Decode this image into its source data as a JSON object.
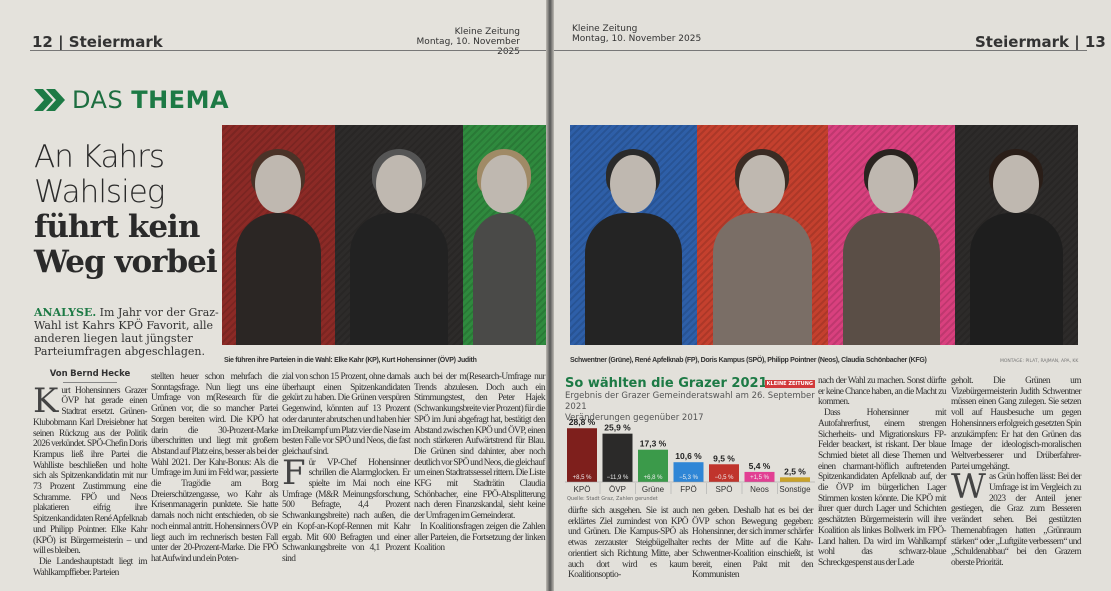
{
  "left_page": {
    "section": "12 | Steiermark",
    "paper": "Kleine Zeitung",
    "date": "Montag, 10. November 2025",
    "kicker": {
      "light": "DAS",
      "bold": "THEMA"
    },
    "headline": {
      "light_1": "An Kahrs",
      "light_2": "Wahlsieg",
      "bold_1": "führt kein",
      "bold_2": "Weg vorbei"
    },
    "lead": {
      "label": "ANALYSE.",
      "text": " Im Jahr vor der Graz-Wahl ist Kahrs KPÖ Favorit, alle anderen liegen laut jüngster Parteiumfragen abgeschlagen."
    },
    "caption": "Sie führen ihre Parteien in die Wahl: Elke Kahr (KP), Kurt Hohensinner (ÖVP) Judith",
    "byline": "Von Bernd Hecke",
    "col1": {
      "drop": "K",
      "p1": "urt Hohensinners Grazer ÖVP hat gerade einen Stadtrat ersetzt. Grünen-Klubobmann Karl Dreisiebner hat seinen Rückzug aus der Politik 2026 verkündet. SPÖ-Chefin Doris Krampus ließ ihre Partei die Wahlliste beschließen und holte sich als Spitzenkandidatin mit nur 73 Prozent Zustimmung eine Schramme. FPÖ und Neos plakatieren eifrig ihre Spitzenkandidaten René Apfelknab und Philipp Pointner. Elke Kahr (KPÖ) ist Bürgermeisterin – und will es bleiben.",
      "p2": "Die Landeshauptstadt liegt im Wahlkampffieber. Parteien"
    },
    "col2": "stellten heuer schon mehrfach die Sonntagsfrage. Nun liegt uns eine Umfrage von m(Research für die Grünen vor, die so mancher Partei Sorgen bereiten wird. Die KPÖ hat darin die 30-Prozent-Marke überschritten und liegt mit großem Abstand auf Platz eins, besser als bei der Wahl 2021. Der Kahr-Bonus: Als die Umfrage im Juni im Feld war, passierte die Tragödie am Borg Dreierschützengasse, wo Kahr als Krisenmanagerin punktete. Sie hatte damals noch nicht entschieden, ob sie noch einmal antritt. Hohensinners ÖVP liegt auch im rechnerisch besten Fall unter der 20-Prozent-Marke. Die FPÖ hat Aufwind und ein Poten-",
    "col3": {
      "p1": "zial von schon 15 Prozent, ohne damals überhaupt einen Spitzenkandidaten gekürt zu haben. Die Grünen verspüren Gegenwind, könnten auf 13 Prozent oder darunter abrutschen und haben hier im Dreikampf um Platz vier die Nase im besten Falle vor SPÖ und Neos, die fast gleichauf sind.",
      "drop": "F",
      "p2": "ür VP-Chef Hohensinner schrillen die Alarmglocken. Er spielte im Mai noch eine Umfrage (M&R Meinungsforschung, 500 Befragte, 4,4 Prozent Schwankungsbreite) nach außen, die ein Kopf-an-Kopf-Rennen mit Kahr ergab. Mit 600 Befragten und einer Schwankungsbreite von 4,1 Prozent sind"
    },
    "col4": {
      "p1": "auch bei der m(Research-Umfrage nur Trends abzulesen. Doch auch ein Stimmungstest, den Peter Hajek (Schwankungsbreite vier Prozent) für die SPÖ im Juni abgefragt hat, bestätigt den Abstand zwischen KPÖ und ÖVP, einen noch stärkeren Aufwärtstrend für Blau. Die Grünen sind dahinter, aber noch deutlich vor SPÖ und Neos, die gleichauf um einen Stadtratssessel rittern. Die Liste KFG mit Stadträtin Claudia Schönbacher, eine FPÖ-Absplitterung nach deren Finanzskandal, sieht keine der Umfragen im Gemeinderat.",
      "p2": "In Koalitionsfragen zeigen die Zahlen aller Parteien, die Fortsetzung der linken Koalition"
    }
  },
  "right_page": {
    "paper": "Kleine Zeitung",
    "date": "Montag, 10. November 2025",
    "section": "Steiermark | 13",
    "caption": "Schwentner (Grüne), René Apfelknab (FP), Doris Kampus (SPÖ), Philipp Pointner (Neos), Claudia Schönbacher (KFG)",
    "credit": "MONTAGE: PILAT, RAJMAN, APA, KK",
    "col1": "dürfte sich ausgehen. Sie ist auch erklärtes Ziel zumindest von KPÖ und Grünen. Die Kampus-SPÖ als etwas zerzauster Steigbügelhalter orientiert sich Richtung Mitte, aber auch dort wird es kaum Koalitionsoptio-",
    "col2": "nen geben. Deshalb hat es bei der ÖVP schon Bewegung gegeben: Hohensinner, der sich immer schärfer rechts der Mitte auf die Kahr-Schwentner-Koalition einschießt, ist bereit, einen Pakt mit den Kommunisten",
    "col3": {
      "p1": "nach der Wahl zu machen. Sonst dürfte er keine Chance haben, an die Macht zu kommen.",
      "p2": "Dass Hohensinner mit Autofahrerfrust, einem strengen Sicherheits- und Migrationskurs FP-Felder beackert, ist riskant. Der blaue Schmied bietet all diese Themen und einen charmant-höflich auftretenden Spitzenkandidaten Apfelknab auf, der die ÖVP im bürgerlichen Lager Stimmen kosten könnte. Die KPÖ mit ihrer quer durch Lager und Schichten geschätzten Bürgermeisterin will ihre Koalition als linkes Bollwerk im FPÖ-Land halten. Da wird im Wahlkampf wohl das schwarz-blaue Schreckgespenst aus der Lade"
    },
    "col4": {
      "p1": "geholt. Die Grünen um Vizebürgermeisterin Judith Schwentner müssen einen Gang zulegen. Sie setzen voll auf Hausbesuche um gegen Hohensinners erfolgreich gesetzten Spin anzukämpfen: Er hat den Grünen das Image der ideologisch-moralischen Weltverbesserer und Drüberfahrer-Partei umgehängt.",
      "drop": "W",
      "p2": "as Grün hoffen lässt: Bei der Umfrage ist im Vergleich zu 2023 der Anteil jener gestiegen, die Graz zum Besseren verändert sehen. Bei gestützten Themenabfragen hatten „Grünraum stärken“ oder „Luftgüte verbessern“ und „Schuldenabbau“ bei den Grazern oberste Priorität."
    }
  },
  "photo_panels": {
    "left": [
      "#8c2a26",
      "#2d2b2a",
      "#2f8a3e"
    ],
    "right": [
      "#2e5fa8",
      "#c4402e",
      "#d9407e",
      "#2d2b2a"
    ]
  },
  "accent_color": "#1d7a45",
  "chart_data": {
    "type": "bar",
    "title": "So wählten die Grazer 2021",
    "subtitle_1": "Ergebnis der Grazer Gemeinderatswahl am 26. September 2021",
    "subtitle_2": "Veränderungen gegenüber 2017",
    "logo": "KLEINE ZEITUNG",
    "source": "Quelle: Stadt Graz, Zahlen gerundet",
    "categories": [
      "KPÖ",
      "ÖVP",
      "Grüne",
      "FPÖ",
      "SPÖ",
      "Neos",
      "Sonstige"
    ],
    "values": [
      28.8,
      25.9,
      17.3,
      10.6,
      9.5,
      5.4,
      2.5
    ],
    "value_labels": [
      "28,8 %",
      "25,9 %",
      "17,3 %",
      "10,6 %",
      "9,5 %",
      "5,4 %",
      "2,5 %"
    ],
    "changes": [
      8.5,
      -11.9,
      6.8,
      -5.3,
      -0.5,
      1.5,
      null
    ],
    "change_labels": [
      "+8,5 %",
      "−11,9 %",
      "+6,8 %",
      "−5,3 %",
      "−0,5 %",
      "+1,5 %",
      ""
    ],
    "colors": [
      "#7e1f1c",
      "#2b2a29",
      "#3b9a4a",
      "#2f86d6",
      "#c0342c",
      "#e23f93",
      "#c9a22a"
    ],
    "unit": "%",
    "ylim": [
      0,
      30
    ],
    "grid": false
  }
}
